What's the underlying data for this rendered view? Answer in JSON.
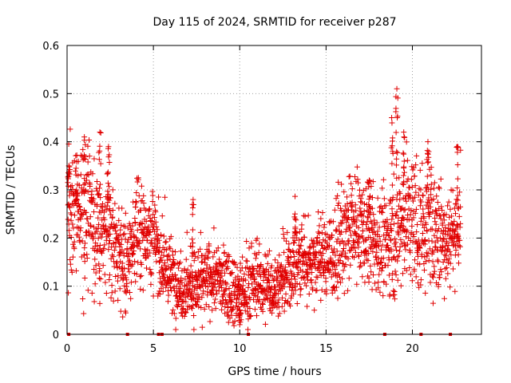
{
  "chart_data": {
    "type": "scatter",
    "title": "Day 115 of 2024, SRMTID for receiver p287",
    "xlabel": "GPS time / hours",
    "ylabel": "SRMTID / TECUs",
    "xlim": [
      0,
      24
    ],
    "ylim": [
      0,
      0.6
    ],
    "x_ticks": [
      "0",
      "5",
      "10",
      "15",
      "20"
    ],
    "y_ticks": [
      "0",
      "0.1",
      "0.2",
      "0.3",
      "0.4",
      "0.5",
      "0.6"
    ],
    "marker": "+",
    "color": "#e00000",
    "grid": true,
    "legend": "none",
    "series": [
      {
        "name": "SRMTID",
        "envelope_hours": [
          0,
          0.5,
          1,
          1.5,
          2,
          2.5,
          3,
          3.5,
          4,
          4.5,
          5,
          5.5,
          6,
          6.5,
          7,
          7.5,
          8,
          8.5,
          9,
          9.5,
          10,
          10.5,
          11,
          11.5,
          12,
          12.5,
          13,
          13.5,
          14,
          14.5,
          15,
          15.5,
          16,
          16.5,
          17,
          17.5,
          18,
          18.5,
          19,
          19.5,
          20,
          20.5,
          21,
          21.5,
          22,
          22.5,
          23
        ],
        "typical_tecu": [
          0.25,
          0.27,
          0.26,
          0.22,
          0.2,
          0.2,
          0.17,
          0.14,
          0.22,
          0.22,
          0.2,
          0.15,
          0.12,
          0.1,
          0.1,
          0.1,
          0.11,
          0.12,
          0.11,
          0.1,
          0.08,
          0.1,
          0.11,
          0.1,
          0.1,
          0.11,
          0.13,
          0.16,
          0.15,
          0.16,
          0.16,
          0.17,
          0.19,
          0.22,
          0.22,
          0.2,
          0.18,
          0.19,
          0.21,
          0.24,
          0.23,
          0.22,
          0.23,
          0.2,
          0.2,
          0.22,
          0.22
        ],
        "spread_tecu": [
          0.06,
          0.07,
          0.08,
          0.07,
          0.06,
          0.06,
          0.05,
          0.05,
          0.05,
          0.05,
          0.05,
          0.04,
          0.04,
          0.035,
          0.035,
          0.035,
          0.035,
          0.04,
          0.035,
          0.035,
          0.035,
          0.035,
          0.035,
          0.035,
          0.035,
          0.035,
          0.04,
          0.045,
          0.04,
          0.045,
          0.045,
          0.05,
          0.05,
          0.055,
          0.055,
          0.05,
          0.05,
          0.05,
          0.06,
          0.07,
          0.07,
          0.07,
          0.06,
          0.06,
          0.05,
          0.05,
          0.05
        ],
        "peaks": [
          {
            "x": 0.1,
            "y": 0.35
          },
          {
            "x": 0.55,
            "y": 0.3
          },
          {
            "x": 1.0,
            "y": 0.41
          },
          {
            "x": 1.9,
            "y": 0.42
          },
          {
            "x": 2.4,
            "y": 0.39
          },
          {
            "x": 7.3,
            "y": 0.28
          },
          {
            "x": 10.0,
            "y": 0.02
          },
          {
            "x": 13.2,
            "y": 0.25
          },
          {
            "x": 17.5,
            "y": 0.32
          },
          {
            "x": 19.1,
            "y": 0.51
          },
          {
            "x": 18.8,
            "y": 0.45
          },
          {
            "x": 19.5,
            "y": 0.42
          },
          {
            "x": 20.9,
            "y": 0.4
          },
          {
            "x": 22.6,
            "y": 0.39
          }
        ],
        "zero_points_hours": [
          0.1,
          3.5,
          5.3,
          5.5,
          10.5,
          18.4,
          20.5,
          22.2
        ]
      }
    ]
  }
}
